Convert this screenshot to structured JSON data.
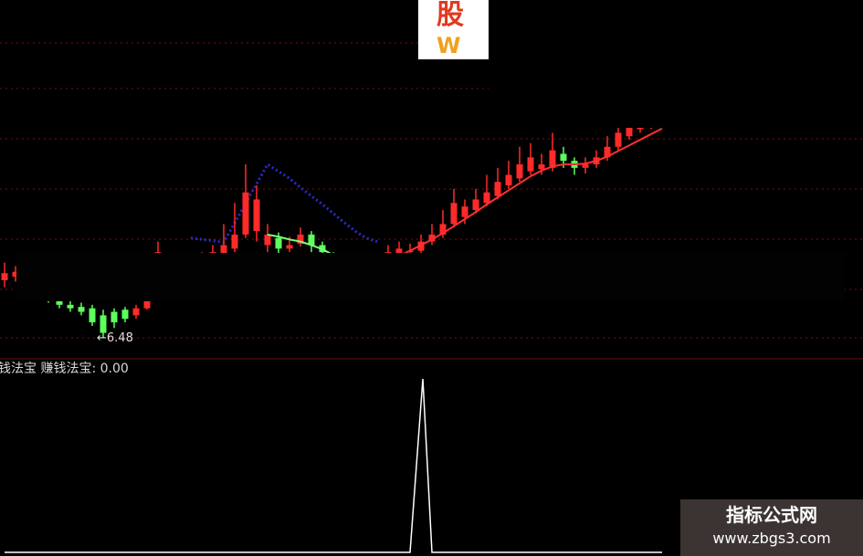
{
  "chart_data": [
    {
      "type": "candlestick",
      "title": "",
      "low_marker": "←6.48",
      "colors": {
        "up": "#ff2a2a",
        "down": "#5cff5c",
        "ma": "#ff3030",
        "ma_down": "#7dff7d",
        "trend_dotted": "#2c2cc8",
        "grid": "#7a1010"
      },
      "grid": true,
      "candles": [
        [
          7.3,
          7.4,
          7.55,
          7.2
        ],
        [
          7.35,
          7.42,
          7.5,
          7.28
        ],
        [
          7.4,
          7.3,
          7.48,
          7.22
        ],
        [
          7.3,
          7.2,
          7.38,
          7.12
        ],
        [
          7.2,
          7.05,
          7.25,
          6.98
        ],
        [
          7.05,
          6.95,
          7.1,
          6.9
        ],
        [
          6.95,
          6.9,
          7.0,
          6.85
        ],
        [
          6.92,
          6.85,
          6.98,
          6.8
        ],
        [
          6.9,
          6.7,
          6.95,
          6.65
        ],
        [
          6.8,
          6.55,
          6.88,
          6.48
        ],
        [
          6.85,
          6.7,
          6.9,
          6.62
        ],
        [
          6.88,
          6.75,
          6.92,
          6.7
        ],
        [
          6.8,
          6.9,
          6.95,
          6.75
        ],
        [
          6.9,
          7.1,
          7.15,
          6.88
        ],
        [
          7.15,
          7.7,
          7.85,
          7.1
        ],
        [
          7.4,
          7.45,
          7.55,
          7.35
        ],
        [
          7.45,
          7.5,
          7.6,
          7.4
        ],
        [
          7.5,
          7.55,
          7.65,
          7.45
        ],
        [
          7.55,
          7.6,
          7.7,
          7.5
        ],
        [
          7.6,
          7.7,
          7.8,
          7.55
        ],
        [
          7.65,
          7.8,
          8.1,
          7.6
        ],
        [
          7.75,
          7.95,
          8.4,
          7.7
        ],
        [
          7.95,
          8.55,
          8.95,
          7.9
        ],
        [
          8.0,
          8.45,
          8.65,
          7.85
        ],
        [
          7.8,
          7.95,
          8.1,
          7.7
        ],
        [
          7.9,
          7.75,
          7.98,
          7.65
        ],
        [
          7.75,
          7.8,
          7.92,
          7.7
        ],
        [
          7.82,
          7.95,
          8.05,
          7.78
        ],
        [
          7.95,
          7.8,
          8.0,
          7.7
        ],
        [
          7.8,
          7.7,
          7.85,
          7.6
        ],
        [
          7.65,
          7.55,
          7.7,
          7.45
        ],
        [
          7.55,
          7.45,
          7.6,
          7.4
        ],
        [
          7.45,
          7.4,
          7.5,
          7.35
        ],
        [
          7.4,
          7.45,
          7.52,
          7.35
        ],
        [
          7.45,
          7.55,
          7.6,
          7.42
        ],
        [
          7.55,
          7.7,
          7.8,
          7.5
        ],
        [
          7.65,
          7.75,
          7.85,
          7.6
        ],
        [
          7.7,
          7.72,
          7.82,
          7.62
        ],
        [
          7.72,
          7.85,
          7.95,
          7.68
        ],
        [
          7.85,
          7.95,
          8.1,
          7.8
        ],
        [
          7.95,
          8.1,
          8.3,
          7.9
        ],
        [
          8.1,
          8.4,
          8.6,
          8.05
        ],
        [
          8.2,
          8.35,
          8.45,
          8.1
        ],
        [
          8.3,
          8.45,
          8.6,
          8.25
        ],
        [
          8.4,
          8.55,
          8.8,
          8.35
        ],
        [
          8.5,
          8.7,
          8.9,
          8.45
        ],
        [
          8.65,
          8.8,
          9.0,
          8.6
        ],
        [
          8.75,
          8.95,
          9.2,
          8.7
        ],
        [
          8.85,
          9.05,
          9.25,
          8.8
        ],
        [
          8.88,
          8.95,
          9.1,
          8.8
        ],
        [
          8.9,
          9.15,
          9.4,
          8.85
        ],
        [
          9.1,
          9.0,
          9.2,
          8.9
        ],
        [
          9.0,
          8.9,
          9.05,
          8.8
        ],
        [
          8.9,
          8.95,
          9.05,
          8.82
        ],
        [
          8.95,
          9.05,
          9.15,
          8.9
        ],
        [
          9.05,
          9.2,
          9.35,
          9.0
        ],
        [
          9.2,
          9.4,
          9.6,
          9.15
        ],
        [
          9.35,
          9.5,
          9.65,
          9.3
        ],
        [
          9.45,
          9.55,
          9.7,
          9.4
        ],
        [
          9.5,
          9.65,
          9.75,
          9.45
        ],
        [
          9.6,
          9.7,
          9.8,
          9.55
        ]
      ],
      "ma": [
        null,
        null,
        null,
        null,
        null,
        null,
        null,
        null,
        null,
        null,
        null,
        null,
        null,
        null,
        null,
        null,
        null,
        null,
        null,
        null,
        null,
        null,
        null,
        null,
        7.95,
        7.92,
        7.88,
        7.85,
        7.8,
        7.74,
        7.66,
        7.58,
        7.52,
        7.5,
        7.52,
        7.58,
        7.65,
        7.72,
        7.8,
        7.88,
        7.97,
        8.07,
        8.17,
        8.27,
        8.38,
        8.48,
        8.58,
        8.68,
        8.78,
        8.86,
        8.92,
        8.95,
        8.95,
        8.96,
        9.0,
        9.06,
        9.14,
        9.22,
        9.3,
        9.38,
        9.46
      ],
      "trend": [
        null,
        null,
        null,
        null,
        null,
        null,
        null,
        null,
        null,
        null,
        null,
        null,
        null,
        null,
        null,
        null,
        null,
        7.9,
        7.88,
        7.86,
        7.84,
        null,
        null,
        null,
        8.95,
        8.85,
        8.75,
        8.62,
        8.5,
        8.38,
        8.25,
        8.12,
        8.0,
        7.9,
        7.85
      ]
    },
    {
      "type": "line",
      "title": "赚钱法宝",
      "values": [
        0,
        0,
        0,
        0,
        0,
        0,
        0,
        0,
        0,
        0,
        0,
        0,
        0,
        0,
        0,
        0,
        0,
        0,
        0,
        0,
        0,
        0,
        0,
        0,
        0,
        0,
        0,
        0,
        0,
        0,
        0,
        0,
        0,
        0,
        0,
        0,
        0,
        0,
        1,
        0,
        0,
        0,
        0,
        0,
        0,
        0,
        0,
        0,
        0,
        0,
        0,
        0,
        0,
        0,
        0,
        0,
        0,
        0,
        0,
        0,
        0
      ],
      "color": "#ffffff"
    }
  ],
  "indicator": {
    "title_cut": "钱法宝",
    "title": "赚钱法宝:",
    "value": "0.00"
  },
  "logo": {
    "line1": "股",
    "line2": "W"
  },
  "watermark": {
    "line1": "指标公式网",
    "line2": "www.zbgs3.com"
  }
}
